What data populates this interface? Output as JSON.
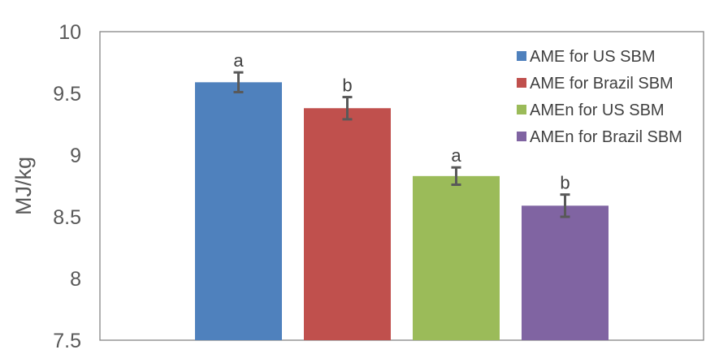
{
  "chart_data": {
    "type": "bar",
    "title": "",
    "xlabel": "",
    "ylabel": "MJ/kg",
    "ylim": [
      7.5,
      10
    ],
    "yticks": [
      "7.5",
      "8",
      "8.5",
      "9",
      "9.5",
      "10"
    ],
    "grid": false,
    "legend_position": "top-right",
    "series": [
      {
        "name": "AME for US SBM",
        "value": 9.59,
        "error": 0.08,
        "letter": "a",
        "color": "#4F81BD"
      },
      {
        "name": "AME for Brazil SBM",
        "value": 9.38,
        "error": 0.09,
        "letter": "b",
        "color": "#C0504D"
      },
      {
        "name": "AMEn for US SBM",
        "value": 8.83,
        "error": 0.07,
        "letter": "a",
        "color": "#9BBB59"
      },
      {
        "name": "AMEn for Brazil SBM",
        "value": 8.59,
        "error": 0.09,
        "letter": "b",
        "color": "#8064A2"
      }
    ]
  }
}
